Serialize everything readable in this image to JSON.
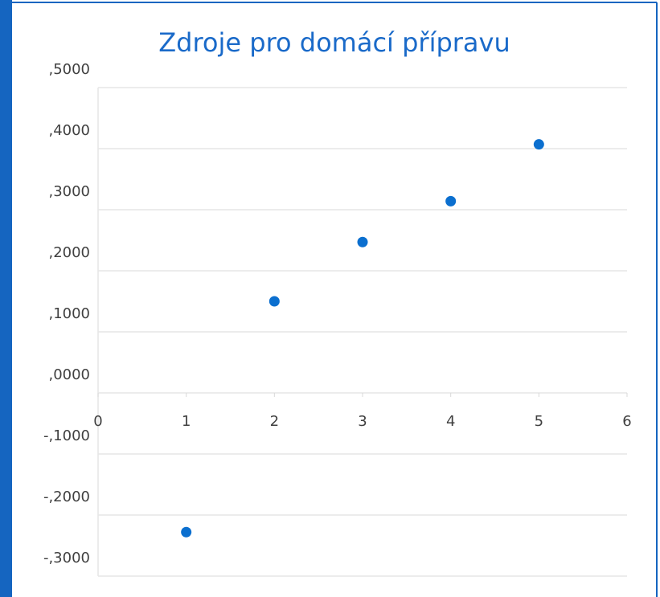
{
  "chart_data": {
    "type": "scatter",
    "title": "Zdroje pro domácí přípravu",
    "series": [
      {
        "color": "#0b6fcf",
        "x": [
          1,
          2,
          3,
          4,
          5
        ],
        "values": [
          -0.228,
          0.15,
          0.247,
          0.314,
          0.407
        ]
      }
    ],
    "xlim": [
      0,
      6
    ],
    "xticks": [
      0,
      1,
      2,
      3,
      4,
      5,
      6
    ],
    "ylim": [
      -0.3,
      0.5
    ],
    "yticks": [
      {
        "value": -0.3,
        "label": "-,3000"
      },
      {
        "value": -0.2,
        "label": "-,2000"
      },
      {
        "value": -0.1,
        "label": "-,1000"
      },
      {
        "value": 0,
        "label": ",0000"
      },
      {
        "value": 0.1,
        "label": ",1000"
      },
      {
        "value": 0.2,
        "label": ",2000"
      },
      {
        "value": 0.3,
        "label": ",3000"
      },
      {
        "value": 0.4,
        "label": ",4000"
      },
      {
        "value": 0.5,
        "label": ",5000"
      }
    ],
    "grid": true
  }
}
